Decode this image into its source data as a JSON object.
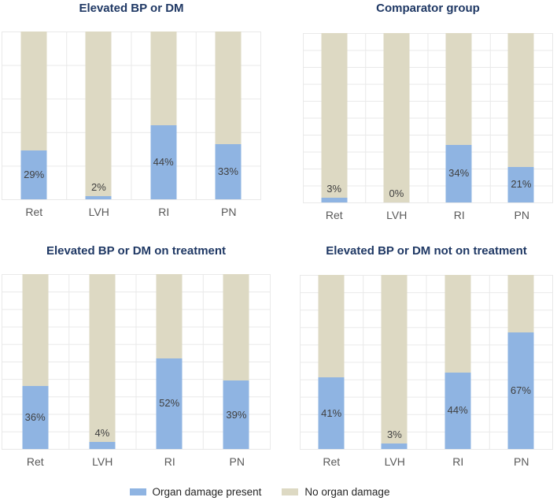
{
  "figure": {
    "background": "#ffffff",
    "layout": "2x2 grid of 100% stacked column charts with shared bottom legend"
  },
  "colors": {
    "organ_damage_present": "#8FB4E2",
    "no_organ_damage": "#DDD9C3",
    "title": "#1F3864",
    "axis_label": "#595959",
    "data_label": "#404040",
    "gridline": "#e9e9e9"
  },
  "legend": {
    "position": "bottom-center",
    "items": [
      {
        "label": "Organ damage present",
        "color": "#8FB4E2"
      },
      {
        "label": "No organ damage",
        "color": "#DDD9C3"
      }
    ]
  },
  "chart_data": [
    {
      "type": "bar",
      "stacked": true,
      "percent_stacked": true,
      "title": "Elevated BP or DM",
      "categories": [
        "Ret",
        "LVH",
        "RI",
        "PN"
      ],
      "series": [
        {
          "name": "Organ damage present",
          "values": [
            29,
            2,
            44,
            33
          ]
        },
        {
          "name": "No organ damage",
          "values": [
            71,
            98,
            56,
            67
          ]
        }
      ],
      "data_labels": [
        "29%",
        "2%",
        "44%",
        "33%"
      ],
      "ylim": [
        0,
        100
      ],
      "grid": true,
      "grid_rows": 5,
      "ytick_interval_pct": 20,
      "y_axis_labels_visible": false
    },
    {
      "type": "bar",
      "stacked": true,
      "percent_stacked": true,
      "title": "Comparator group",
      "categories": [
        "Ret",
        "LVH",
        "RI",
        "PN"
      ],
      "series": [
        {
          "name": "Organ damage present",
          "values": [
            3,
            0,
            34,
            21
          ]
        },
        {
          "name": "No organ damage",
          "values": [
            97,
            100,
            66,
            79
          ]
        }
      ],
      "data_labels": [
        "3%",
        "0%",
        "34%",
        "21%"
      ],
      "ylim": [
        0,
        100
      ],
      "grid": true,
      "grid_rows": 10,
      "ytick_interval_pct": 10,
      "y_axis_labels_visible": false
    },
    {
      "type": "bar",
      "stacked": true,
      "percent_stacked": true,
      "title": "Elevated BP or DM on treatment",
      "categories": [
        "Ret",
        "LVH",
        "RI",
        "PN"
      ],
      "series": [
        {
          "name": "Organ damage present",
          "values": [
            36,
            4,
            52,
            39
          ]
        },
        {
          "name": "No organ damage",
          "values": [
            64,
            96,
            48,
            61
          ]
        }
      ],
      "data_labels": [
        "36%",
        "4%",
        "52%",
        "39%"
      ],
      "ylim": [
        0,
        100
      ],
      "grid": true,
      "grid_rows": 10,
      "ytick_interval_pct": 10,
      "y_axis_labels_visible": false
    },
    {
      "type": "bar",
      "stacked": true,
      "percent_stacked": true,
      "title": "Elevated BP or DM not on treatment",
      "categories": [
        "Ret",
        "LVH",
        "RI",
        "PN"
      ],
      "series": [
        {
          "name": "Organ damage present",
          "values": [
            41,
            3,
            44,
            67
          ]
        },
        {
          "name": "No organ damage",
          "values": [
            59,
            97,
            56,
            33
          ]
        }
      ],
      "data_labels": [
        "41%",
        "3%",
        "44%",
        "67%"
      ],
      "ylim": [
        0,
        100
      ],
      "grid": true,
      "grid_rows": 10,
      "ytick_interval_pct": 10,
      "y_axis_labels_visible": false
    }
  ]
}
